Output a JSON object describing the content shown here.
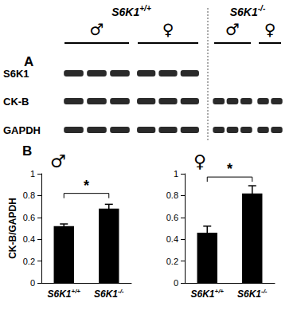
{
  "panels": [
    "A",
    "B"
  ],
  "blot": {
    "groups": [
      {
        "genotype": "S6K1+/+",
        "sex": "♂",
        "lanes": 3
      },
      {
        "genotype": "S6K1+/+",
        "sex": "♀",
        "lanes": 3
      },
      {
        "genotype": "S6K1-/-",
        "sex": "♂",
        "lanes": 3
      },
      {
        "genotype": "S6K1-/-",
        "sex": "♀",
        "lanes": 2
      }
    ],
    "rows": [
      {
        "label": "S6K1",
        "present": [
          true,
          true,
          false,
          false
        ]
      },
      {
        "label": "CK-B",
        "present": [
          true,
          true,
          true,
          true
        ]
      },
      {
        "label": "GAPDH",
        "present": [
          true,
          true,
          true,
          true
        ]
      }
    ]
  },
  "chart_data": [
    {
      "type": "bar",
      "title": "♂",
      "categories": [
        "S6K1+/+",
        "S6K1-/-"
      ],
      "values": [
        0.52,
        0.68
      ],
      "errors": [
        0.02,
        0.04
      ],
      "color": "#000000",
      "ylim": [
        0,
        1
      ],
      "yticks": [
        0,
        0.2,
        0.4,
        0.6,
        0.8,
        1
      ],
      "ylabel": "CK-B/GAPDH",
      "grid": false,
      "annotations": [
        {
          "text": "*",
          "from": "S6K1+/+",
          "to": "S6K1-/-",
          "y": 0.82
        }
      ]
    },
    {
      "type": "bar",
      "title": "♀",
      "categories": [
        "S6K1+/+",
        "S6K1-/-"
      ],
      "values": [
        0.46,
        0.82
      ],
      "errors": [
        0.06,
        0.07
      ],
      "color": "#000000",
      "ylim": [
        0,
        1
      ],
      "yticks": [
        0,
        0.2,
        0.4,
        0.6,
        0.8,
        1
      ],
      "grid": false,
      "annotations": [
        {
          "text": "*",
          "from": "S6K1+/+",
          "to": "S6K1-/-",
          "y": 0.97
        }
      ]
    }
  ]
}
